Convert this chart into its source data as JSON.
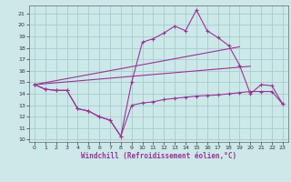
{
  "background_color": "#cce8e8",
  "grid_color": "#aacccc",
  "line_color": "#993399",
  "x_ticks": [
    0,
    1,
    2,
    3,
    4,
    5,
    6,
    7,
    8,
    9,
    10,
    11,
    12,
    13,
    14,
    15,
    16,
    17,
    18,
    19,
    20,
    21,
    22,
    23
  ],
  "xlim": [
    -0.5,
    23.5
  ],
  "ylim": [
    9.8,
    21.7
  ],
  "yticks": [
    10,
    11,
    12,
    13,
    14,
    15,
    16,
    17,
    18,
    19,
    20,
    21
  ],
  "xlabel": "Windchill (Refroidissement éolien,°C)",
  "line_main_x": [
    0,
    1,
    2,
    3,
    4,
    5,
    6,
    7,
    8,
    9,
    10,
    11,
    12,
    13,
    14,
    15,
    16,
    17,
    18,
    19,
    20,
    21,
    22,
    23
  ],
  "line_main_y": [
    14.8,
    14.4,
    14.3,
    14.3,
    12.7,
    12.5,
    12.0,
    11.7,
    10.3,
    15.0,
    18.5,
    18.8,
    19.3,
    19.9,
    19.5,
    21.3,
    19.5,
    18.9,
    18.2,
    16.5,
    14.0,
    14.8,
    14.7,
    13.1
  ],
  "line_low_x": [
    0,
    1,
    2,
    3,
    4,
    5,
    6,
    7,
    8,
    9,
    10,
    11,
    12,
    13,
    14,
    15,
    16,
    17,
    18,
    19,
    20,
    21,
    22,
    23
  ],
  "line_low_y": [
    14.8,
    14.4,
    14.3,
    14.3,
    12.7,
    12.5,
    12.0,
    11.7,
    10.3,
    13.0,
    13.2,
    13.3,
    13.5,
    13.6,
    13.7,
    13.8,
    13.85,
    13.9,
    14.0,
    14.1,
    14.2,
    14.2,
    14.2,
    13.1
  ],
  "trend1_x": [
    0,
    19
  ],
  "trend1_y": [
    14.8,
    18.1
  ],
  "trend2_x": [
    0,
    20
  ],
  "trend2_y": [
    14.8,
    16.4
  ]
}
